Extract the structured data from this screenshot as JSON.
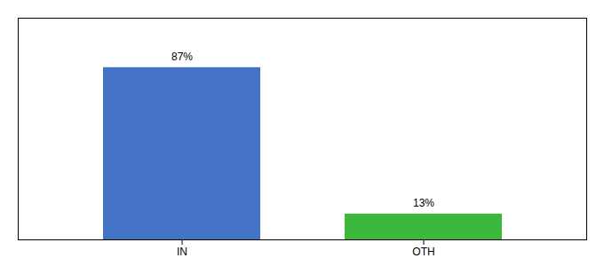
{
  "chart_data": {
    "type": "bar",
    "categories": [
      "IN",
      "OTH"
    ],
    "values": [
      87,
      13
    ],
    "value_labels": [
      "87%",
      "13%"
    ],
    "colors": [
      "#4472c4",
      "#3cb93c"
    ],
    "ylim": [
      0,
      112
    ],
    "data_labels": true,
    "tick_labels": "x"
  }
}
